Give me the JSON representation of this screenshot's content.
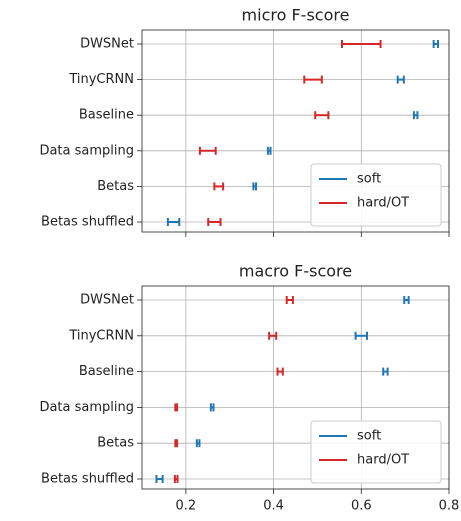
{
  "chart_data": [
    {
      "type": "errorbar",
      "title": "micro F-score",
      "categories": [
        "DWSNet",
        "TinyCRNN",
        "Baseline",
        "Data sampling",
        "Betas",
        "Betas shuffled"
      ],
      "series": [
        {
          "name": "soft",
          "color": "#1f77b4",
          "values": [
            0.77,
            0.69,
            0.724,
            0.39,
            0.357,
            0.172
          ],
          "errors": [
            0.005,
            0.007,
            0.004,
            0.003,
            0.003,
            0.013
          ]
        },
        {
          "name": "hard/OT",
          "color": "#d62728",
          "values": [
            0.6,
            0.49,
            0.51,
            0.25,
            0.275,
            0.265
          ],
          "errors": [
            0.044,
            0.02,
            0.015,
            0.018,
            0.01,
            0.014
          ]
        }
      ],
      "xlim": [
        0.1,
        0.8
      ],
      "xticks": [
        0.2,
        0.4,
        0.6,
        0.8
      ],
      "grid": true,
      "legend": "lower right"
    },
    {
      "type": "errorbar",
      "title": "macro F-score",
      "categories": [
        "DWSNet",
        "TinyCRNN",
        "Baseline",
        "Data sampling",
        "Betas",
        "Betas shuffled"
      ],
      "series": [
        {
          "name": "soft",
          "color": "#1f77b4",
          "values": [
            0.703,
            0.6,
            0.655,
            0.26,
            0.228,
            0.14
          ],
          "errors": [
            0.005,
            0.013,
            0.005,
            0.003,
            0.003,
            0.007
          ]
        },
        {
          "name": "hard/OT",
          "color": "#d62728",
          "values": [
            0.437,
            0.398,
            0.415,
            0.178,
            0.178,
            0.178
          ],
          "errors": [
            0.007,
            0.008,
            0.006,
            0.002,
            0.002,
            0.003
          ]
        }
      ],
      "xlim": [
        0.1,
        0.8
      ],
      "xticks": [
        0.2,
        0.4,
        0.6,
        0.8
      ],
      "grid": true,
      "legend": "lower right"
    }
  ]
}
